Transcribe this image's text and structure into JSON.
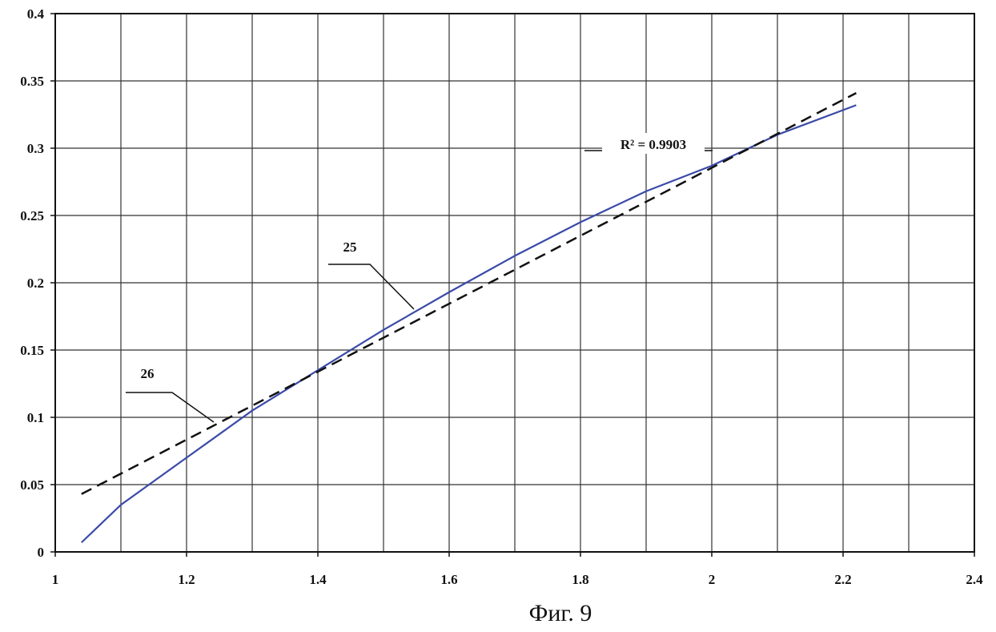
{
  "chart_data": {
    "type": "line",
    "caption": "Фиг. 9",
    "xlim": [
      1,
      2.4
    ],
    "ylim": [
      0,
      0.4
    ],
    "xticks": [
      1,
      1.2,
      1.4,
      1.6,
      1.8,
      2,
      2.2,
      2.4
    ],
    "xgrid": [
      1.1,
      1.3,
      1.5,
      1.7,
      1.9,
      2.1,
      2.3
    ],
    "yticks": [
      0,
      0.05,
      0.1,
      0.15,
      0.2,
      0.25,
      0.3,
      0.35,
      0.4
    ],
    "grid": true,
    "series": [
      {
        "label": "25",
        "color": "#3a4aa8",
        "dashed": false,
        "x": [
          1.04,
          1.1,
          1.2,
          1.3,
          1.4,
          1.5,
          1.6,
          1.7,
          1.8,
          1.9,
          2.0,
          2.1,
          2.22
        ],
        "values": [
          0.007,
          0.035,
          0.07,
          0.105,
          0.135,
          0.165,
          0.193,
          0.22,
          0.245,
          0.268,
          0.287,
          0.31,
          0.332
        ]
      },
      {
        "label": "26",
        "color": "#111111",
        "dashed": true,
        "annotation": "R² = 0.9903",
        "x": [
          1.04,
          2.22
        ],
        "values": [
          0.043,
          0.341
        ]
      }
    ]
  }
}
